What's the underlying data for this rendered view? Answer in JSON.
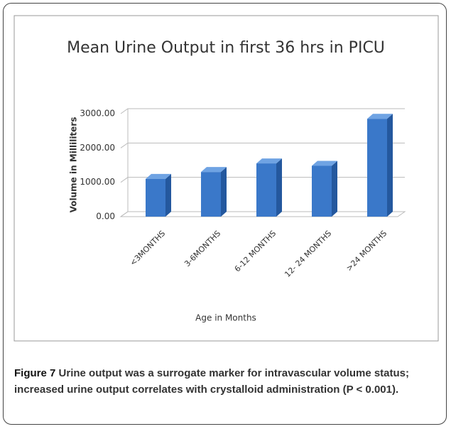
{
  "chart_data": {
    "type": "bar",
    "title": "Mean Urine Output in first 36 hrs in PICU",
    "categories": [
      "<3MONTHS",
      "3-6MONTHS",
      "6-12 MONTHS",
      "12- 24 MONTHS",
      ">24 MONTHS"
    ],
    "values": [
      1100,
      1300,
      1550,
      1480,
      2850
    ],
    "color": "#3a78c9",
    "ylim": [
      0,
      3000
    ],
    "yticks": [
      {
        "value": 0,
        "label": "0.00"
      },
      {
        "value": 1000,
        "label": "1000.00"
      },
      {
        "value": 2000,
        "label": "2000.00"
      },
      {
        "value": 3000,
        "label": "3000.00"
      }
    ],
    "ylabel": "Volume in Milliliters",
    "xlabel": "Age in Months",
    "grid": true
  },
  "figure": {
    "label": "Figure 7",
    "caption": "Urine output was a surrogate marker for intravascular volume status; increased urine output correlates with crystalloid administration (P < 0.001)."
  }
}
